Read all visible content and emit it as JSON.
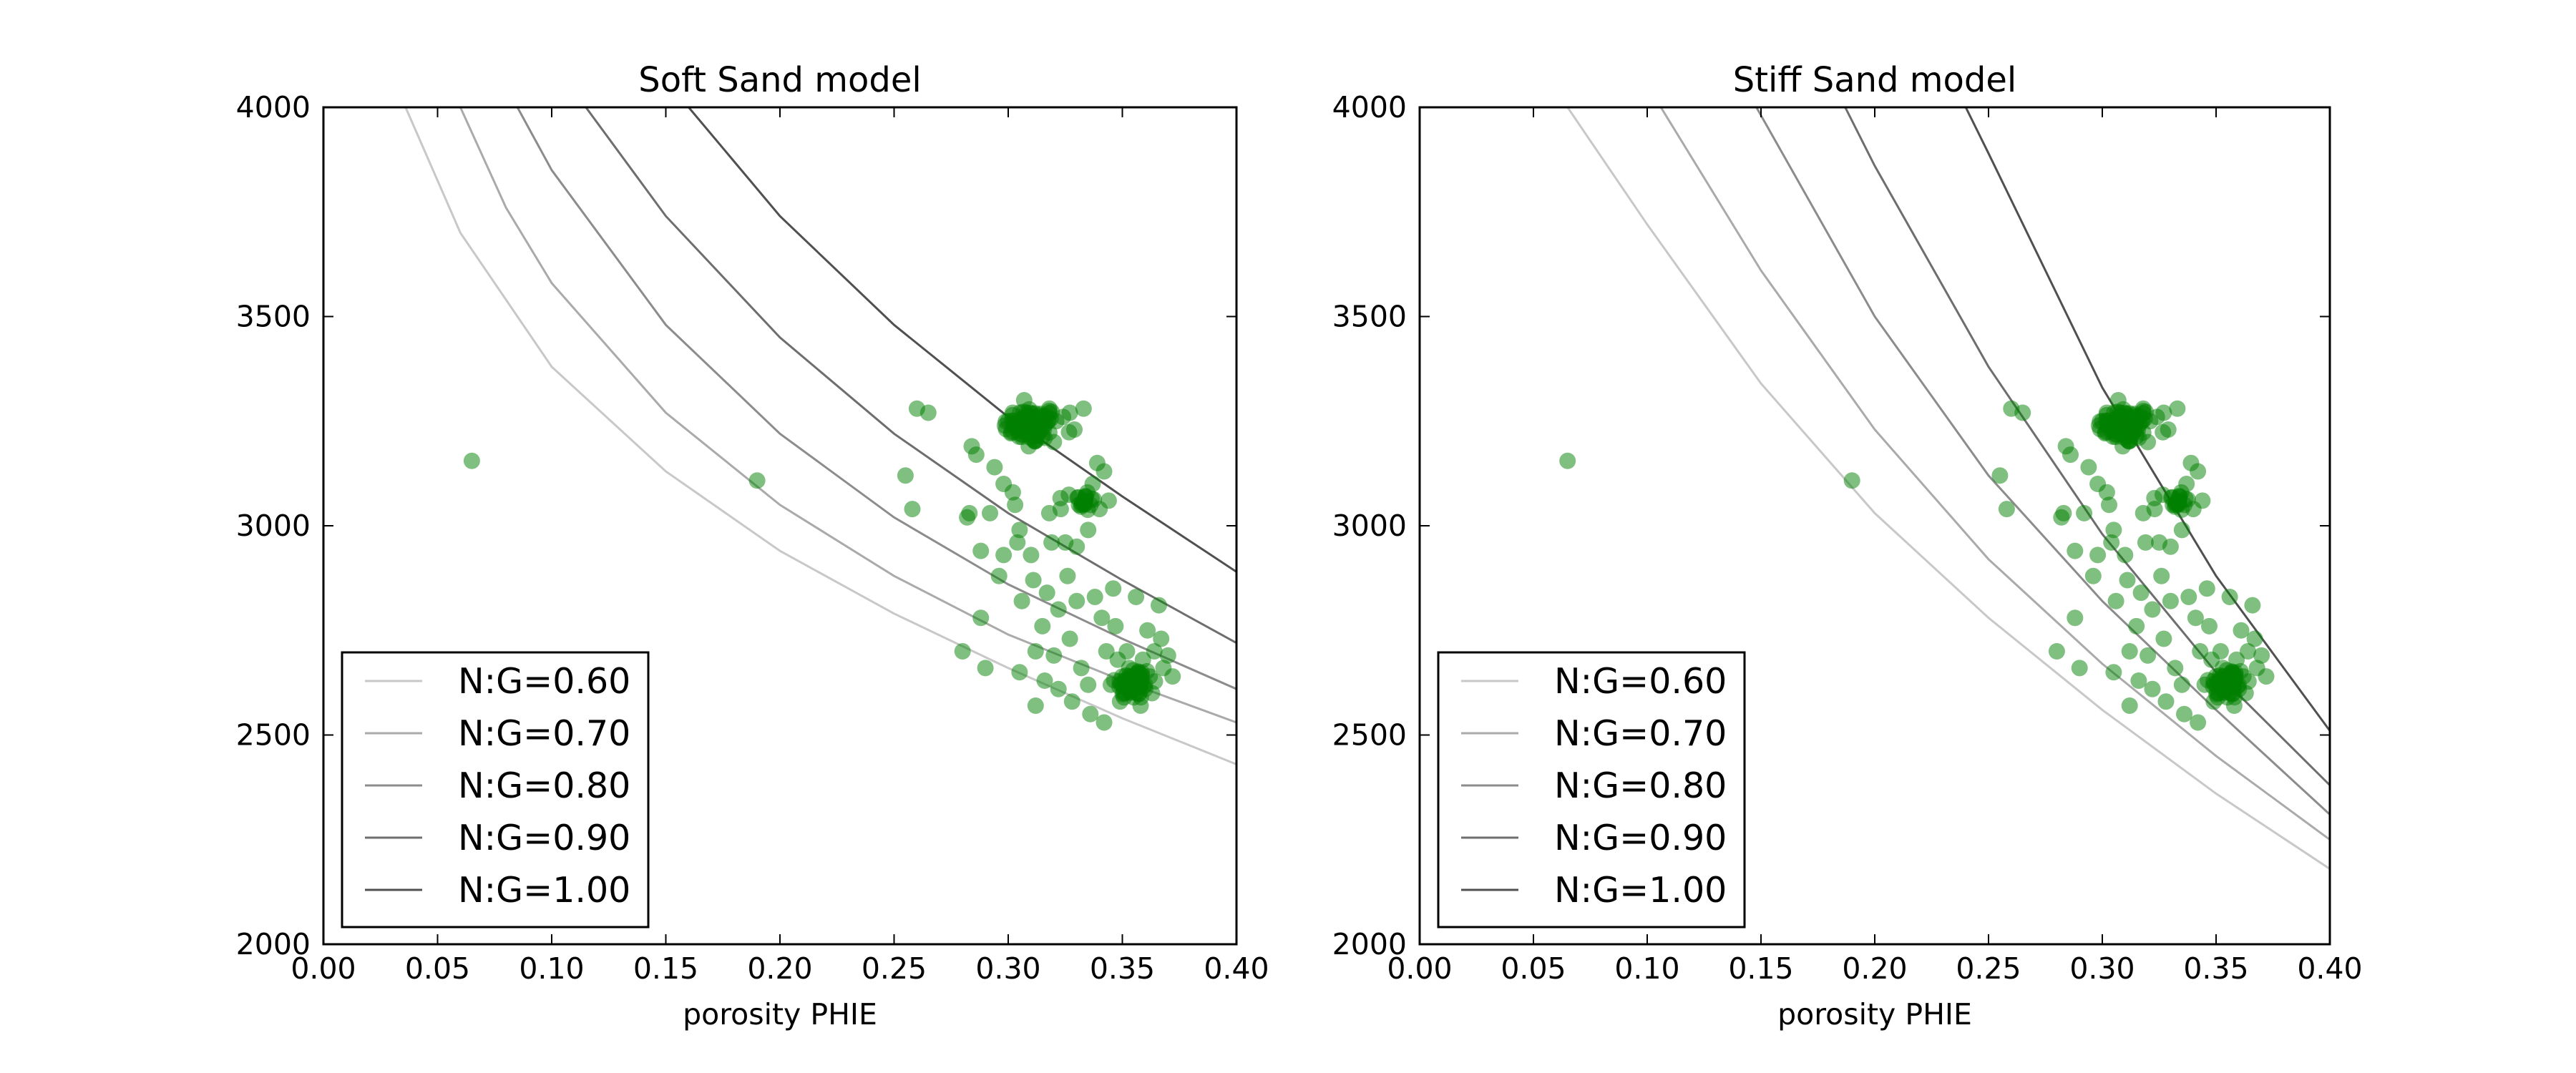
{
  "chart_data": [
    {
      "type": "scatter",
      "title": "Soft Sand model",
      "xlabel": "porosity PHIE",
      "ylabel": "",
      "xlim": [
        0.0,
        0.4
      ],
      "ylim": [
        2000,
        4000
      ],
      "x_ticks": [
        0.0,
        0.05,
        0.1,
        0.15,
        0.2,
        0.25,
        0.3,
        0.35,
        0.4
      ],
      "x_tick_labels": [
        "0.00",
        "0.05",
        "0.10",
        "0.15",
        "0.20",
        "0.25",
        "0.30",
        "0.35",
        "0.40"
      ],
      "y_ticks": [
        2000,
        2500,
        3000,
        3500,
        4000
      ],
      "y_tick_labels": [
        "2000",
        "2500",
        "3000",
        "3500",
        "4000"
      ],
      "grid": false,
      "legend_position": "bottom-left",
      "marker_color": "#008000",
      "series": [
        {
          "name": "N:G=0.60",
          "color": "#c8c8c8",
          "x": [
            0.036,
            0.06,
            0.1,
            0.15,
            0.2,
            0.25,
            0.3,
            0.35,
            0.4
          ],
          "y": [
            4000,
            3700,
            3380,
            3130,
            2940,
            2790,
            2660,
            2540,
            2430
          ]
        },
        {
          "name": "N:G=0.70",
          "color": "#aaaaaa",
          "x": [
            0.06,
            0.08,
            0.1,
            0.15,
            0.2,
            0.25,
            0.3,
            0.35,
            0.4
          ],
          "y": [
            4000,
            3760,
            3580,
            3270,
            3050,
            2880,
            2740,
            2630,
            2530
          ]
        },
        {
          "name": "N:G=0.80",
          "color": "#8c8c8c",
          "x": [
            0.085,
            0.1,
            0.15,
            0.2,
            0.25,
            0.3,
            0.35,
            0.4
          ],
          "y": [
            4000,
            3850,
            3480,
            3220,
            3020,
            2860,
            2730,
            2610
          ]
        },
        {
          "name": "N:G=0.90",
          "color": "#6e6e6e",
          "x": [
            0.115,
            0.15,
            0.2,
            0.25,
            0.3,
            0.35,
            0.4
          ],
          "y": [
            4000,
            3740,
            3450,
            3220,
            3030,
            2870,
            2720
          ]
        },
        {
          "name": "N:G=1.00",
          "color": "#505050",
          "x": [
            0.16,
            0.2,
            0.25,
            0.3,
            0.35,
            0.4
          ],
          "y": [
            4000,
            3740,
            3480,
            3260,
            3070,
            2890
          ]
        }
      ],
      "points": [
        [
          0.065,
          3155
        ],
        [
          0.19,
          3108
        ],
        [
          0.255,
          3120
        ],
        [
          0.258,
          3040
        ],
        [
          0.26,
          3280
        ],
        [
          0.265,
          3270
        ],
        [
          0.28,
          2700
        ],
        [
          0.282,
          3020
        ],
        [
          0.283,
          3030
        ],
        [
          0.284,
          3190
        ],
        [
          0.286,
          3170
        ],
        [
          0.288,
          2780
        ],
        [
          0.288,
          2940
        ],
        [
          0.29,
          2660
        ],
        [
          0.292,
          3030
        ],
        [
          0.294,
          3140
        ],
        [
          0.296,
          2880
        ],
        [
          0.298,
          3100
        ],
        [
          0.298,
          2930
        ],
        [
          0.3,
          3250
        ],
        [
          0.302,
          3080
        ],
        [
          0.303,
          3050
        ],
        [
          0.304,
          2960
        ],
        [
          0.305,
          2650
        ],
        [
          0.305,
          2990
        ],
        [
          0.306,
          2820
        ],
        [
          0.307,
          3300
        ],
        [
          0.308,
          3270
        ],
        [
          0.308,
          3220
        ],
        [
          0.309,
          3190
        ],
        [
          0.31,
          2930
        ],
        [
          0.311,
          2870
        ],
        [
          0.312,
          2700
        ],
        [
          0.312,
          2570
        ],
        [
          0.313,
          3240
        ],
        [
          0.314,
          3230
        ],
        [
          0.315,
          3260
        ],
        [
          0.315,
          2760
        ],
        [
          0.316,
          3210
        ],
        [
          0.316,
          2630
        ],
        [
          0.317,
          2840
        ],
        [
          0.318,
          3280
        ],
        [
          0.318,
          3030
        ],
        [
          0.319,
          2960
        ],
        [
          0.32,
          3200
        ],
        [
          0.32,
          2690
        ],
        [
          0.321,
          3250
        ],
        [
          0.322,
          2800
        ],
        [
          0.322,
          2610
        ],
        [
          0.323,
          3040
        ],
        [
          0.324,
          3260
        ],
        [
          0.325,
          2960
        ],
        [
          0.326,
          2880
        ],
        [
          0.327,
          3270
        ],
        [
          0.327,
          2730
        ],
        [
          0.328,
          2580
        ],
        [
          0.329,
          3230
        ],
        [
          0.33,
          2820
        ],
        [
          0.33,
          2950
        ],
        [
          0.331,
          3050
        ],
        [
          0.332,
          2660
        ],
        [
          0.333,
          3280
        ],
        [
          0.334,
          3070
        ],
        [
          0.335,
          2990
        ],
        [
          0.335,
          2620
        ],
        [
          0.336,
          2550
        ],
        [
          0.337,
          3100
        ],
        [
          0.338,
          2830
        ],
        [
          0.339,
          3150
        ],
        [
          0.34,
          3040
        ],
        [
          0.341,
          2780
        ],
        [
          0.342,
          3130
        ],
        [
          0.342,
          2530
        ],
        [
          0.343,
          2700
        ],
        [
          0.344,
          3060
        ],
        [
          0.345,
          2620
        ],
        [
          0.346,
          2850
        ],
        [
          0.347,
          2760
        ],
        [
          0.348,
          2680
        ],
        [
          0.349,
          2580
        ],
        [
          0.35,
          2640
        ],
        [
          0.351,
          2600
        ],
        [
          0.352,
          2700
        ],
        [
          0.353,
          2660
        ],
        [
          0.354,
          2620
        ],
        [
          0.355,
          2590
        ],
        [
          0.356,
          2830
        ],
        [
          0.357,
          2650
        ],
        [
          0.358,
          2570
        ],
        [
          0.359,
          2680
        ],
        [
          0.36,
          2610
        ],
        [
          0.361,
          2750
        ],
        [
          0.362,
          2640
        ],
        [
          0.363,
          2600
        ],
        [
          0.364,
          2700
        ],
        [
          0.366,
          2810
        ],
        [
          0.367,
          2730
        ],
        [
          0.368,
          2660
        ],
        [
          0.37,
          2690
        ],
        [
          0.372,
          2640
        ]
      ],
      "dense_clusters": [
        {
          "cx": 0.31,
          "cy": 3240,
          "rx": 0.012,
          "ry": 45,
          "n": 80
        },
        {
          "cx": 0.333,
          "cy": 3060,
          "rx": 0.005,
          "ry": 25,
          "n": 20
        },
        {
          "cx": 0.355,
          "cy": 2625,
          "rx": 0.008,
          "ry": 40,
          "n": 55
        }
      ]
    },
    {
      "type": "scatter",
      "title": "Stiff Sand model",
      "xlabel": "porosity PHIE",
      "ylabel": "",
      "xlim": [
        0.0,
        0.4
      ],
      "ylim": [
        2000,
        4000
      ],
      "x_ticks": [
        0.0,
        0.05,
        0.1,
        0.15,
        0.2,
        0.25,
        0.3,
        0.35,
        0.4
      ],
      "x_tick_labels": [
        "0.00",
        "0.05",
        "0.10",
        "0.15",
        "0.20",
        "0.25",
        "0.30",
        "0.35",
        "0.40"
      ],
      "y_ticks": [
        2000,
        2500,
        3000,
        3500,
        4000
      ],
      "y_tick_labels": [
        "2000",
        "2500",
        "3000",
        "3500",
        "4000"
      ],
      "grid": false,
      "legend_position": "bottom-left",
      "marker_color": "#008000",
      "series": [
        {
          "name": "N:G=0.60",
          "color": "#c8c8c8",
          "x": [
            0.065,
            0.1,
            0.15,
            0.2,
            0.25,
            0.3,
            0.35,
            0.4
          ],
          "y": [
            4000,
            3720,
            3340,
            3030,
            2780,
            2560,
            2360,
            2180
          ]
        },
        {
          "name": "N:G=0.70",
          "color": "#aaaaaa",
          "x": [
            0.106,
            0.15,
            0.2,
            0.25,
            0.3,
            0.35,
            0.4
          ],
          "y": [
            4000,
            3610,
            3230,
            2920,
            2670,
            2450,
            2250
          ]
        },
        {
          "name": "N:G=0.80",
          "color": "#8c8c8c",
          "x": [
            0.148,
            0.2,
            0.25,
            0.3,
            0.35,
            0.4
          ],
          "y": [
            4000,
            3500,
            3120,
            2820,
            2560,
            2310
          ]
        },
        {
          "name": "N:G=0.90",
          "color": "#6e6e6e",
          "x": [
            0.187,
            0.2,
            0.25,
            0.3,
            0.35,
            0.4
          ],
          "y": [
            4000,
            3860,
            3380,
            2980,
            2650,
            2380
          ]
        },
        {
          "name": "N:G=1.00",
          "color": "#505050",
          "x": [
            0.24,
            0.25,
            0.3,
            0.35,
            0.4
          ],
          "y": [
            4000,
            3890,
            3330,
            2880,
            2510
          ]
        }
      ],
      "points": [
        [
          0.065,
          3155
        ],
        [
          0.19,
          3108
        ],
        [
          0.255,
          3120
        ],
        [
          0.258,
          3040
        ],
        [
          0.26,
          3280
        ],
        [
          0.265,
          3270
        ],
        [
          0.28,
          2700
        ],
        [
          0.282,
          3020
        ],
        [
          0.283,
          3030
        ],
        [
          0.284,
          3190
        ],
        [
          0.286,
          3170
        ],
        [
          0.288,
          2780
        ],
        [
          0.288,
          2940
        ],
        [
          0.29,
          2660
        ],
        [
          0.292,
          3030
        ],
        [
          0.294,
          3140
        ],
        [
          0.296,
          2880
        ],
        [
          0.298,
          3100
        ],
        [
          0.298,
          2930
        ],
        [
          0.3,
          3250
        ],
        [
          0.302,
          3080
        ],
        [
          0.303,
          3050
        ],
        [
          0.304,
          2960
        ],
        [
          0.305,
          2650
        ],
        [
          0.305,
          2990
        ],
        [
          0.306,
          2820
        ],
        [
          0.307,
          3300
        ],
        [
          0.308,
          3270
        ],
        [
          0.308,
          3220
        ],
        [
          0.309,
          3190
        ],
        [
          0.31,
          2930
        ],
        [
          0.311,
          2870
        ],
        [
          0.312,
          2700
        ],
        [
          0.312,
          2570
        ],
        [
          0.313,
          3240
        ],
        [
          0.314,
          3230
        ],
        [
          0.315,
          3260
        ],
        [
          0.315,
          2760
        ],
        [
          0.316,
          3210
        ],
        [
          0.316,
          2630
        ],
        [
          0.317,
          2840
        ],
        [
          0.318,
          3280
        ],
        [
          0.318,
          3030
        ],
        [
          0.319,
          2960
        ],
        [
          0.32,
          3200
        ],
        [
          0.32,
          2690
        ],
        [
          0.321,
          3250
        ],
        [
          0.322,
          2800
        ],
        [
          0.322,
          2610
        ],
        [
          0.323,
          3040
        ],
        [
          0.324,
          3260
        ],
        [
          0.325,
          2960
        ],
        [
          0.326,
          2880
        ],
        [
          0.327,
          3270
        ],
        [
          0.327,
          2730
        ],
        [
          0.328,
          2580
        ],
        [
          0.329,
          3230
        ],
        [
          0.33,
          2820
        ],
        [
          0.33,
          2950
        ],
        [
          0.331,
          3050
        ],
        [
          0.332,
          2660
        ],
        [
          0.333,
          3280
        ],
        [
          0.334,
          3070
        ],
        [
          0.335,
          2990
        ],
        [
          0.335,
          2620
        ],
        [
          0.336,
          2550
        ],
        [
          0.337,
          3100
        ],
        [
          0.338,
          2830
        ],
        [
          0.339,
          3150
        ],
        [
          0.34,
          3040
        ],
        [
          0.341,
          2780
        ],
        [
          0.342,
          3130
        ],
        [
          0.342,
          2530
        ],
        [
          0.343,
          2700
        ],
        [
          0.344,
          3060
        ],
        [
          0.345,
          2620
        ],
        [
          0.346,
          2850
        ],
        [
          0.347,
          2760
        ],
        [
          0.348,
          2680
        ],
        [
          0.349,
          2580
        ],
        [
          0.35,
          2640
        ],
        [
          0.351,
          2600
        ],
        [
          0.352,
          2700
        ],
        [
          0.353,
          2660
        ],
        [
          0.354,
          2620
        ],
        [
          0.355,
          2590
        ],
        [
          0.356,
          2830
        ],
        [
          0.357,
          2650
        ],
        [
          0.358,
          2570
        ],
        [
          0.359,
          2680
        ],
        [
          0.36,
          2610
        ],
        [
          0.361,
          2750
        ],
        [
          0.362,
          2640
        ],
        [
          0.363,
          2600
        ],
        [
          0.364,
          2700
        ],
        [
          0.366,
          2810
        ],
        [
          0.367,
          2730
        ],
        [
          0.368,
          2660
        ],
        [
          0.37,
          2690
        ],
        [
          0.372,
          2640
        ]
      ],
      "dense_clusters": [
        {
          "cx": 0.31,
          "cy": 3240,
          "rx": 0.012,
          "ry": 45,
          "n": 80
        },
        {
          "cx": 0.333,
          "cy": 3060,
          "rx": 0.005,
          "ry": 25,
          "n": 20
        },
        {
          "cx": 0.355,
          "cy": 2625,
          "rx": 0.008,
          "ry": 40,
          "n": 55
        }
      ]
    }
  ]
}
